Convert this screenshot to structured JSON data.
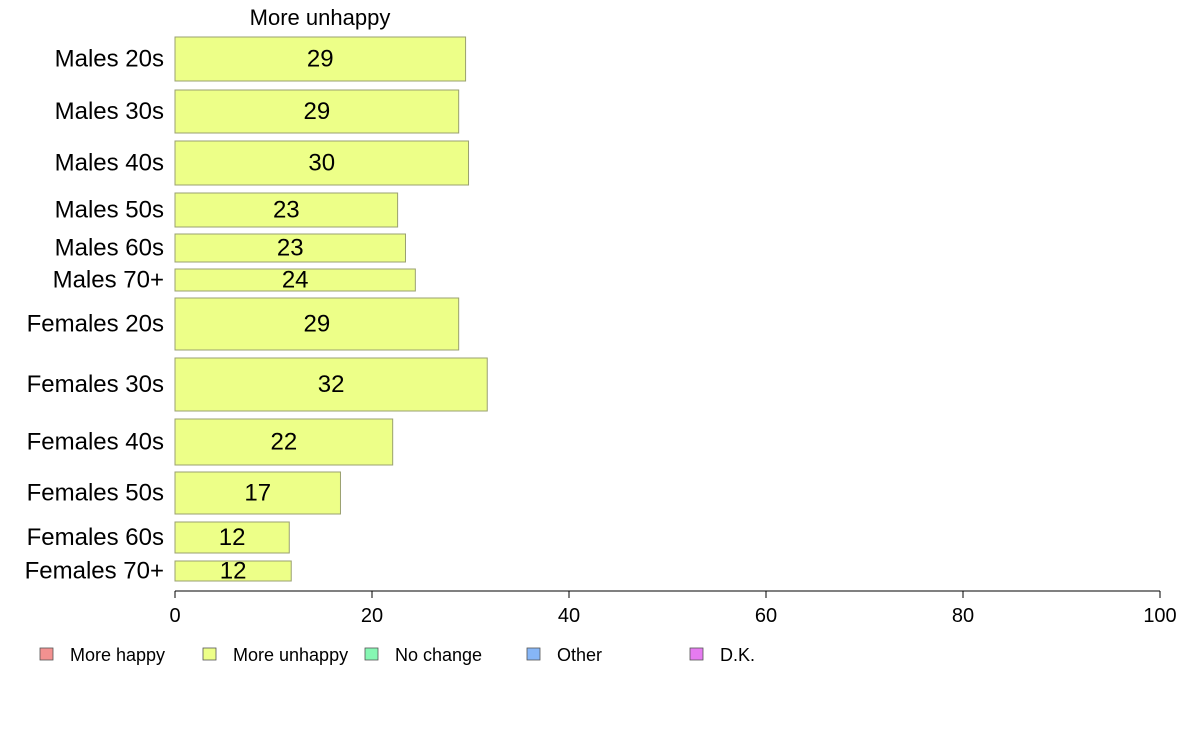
{
  "chart_data": {
    "type": "bar",
    "orientation": "horizontal",
    "title": "More unhappy",
    "xlabel": "",
    "ylabel": "",
    "xlim": [
      0,
      100
    ],
    "xticks": [
      0,
      20,
      40,
      60,
      80,
      100
    ],
    "grid": false,
    "legend_position": "bottom",
    "categories": [
      "Males 20s",
      "Males 30s",
      "Males 40s",
      "Males 50s",
      "Males 60s",
      "Males 70+",
      "Females 20s",
      "Females 30s",
      "Females 40s",
      "Females 50s",
      "Females 60s",
      "Females 70+"
    ],
    "values": [
      29.5,
      28.8,
      29.8,
      22.6,
      23.4,
      24.4,
      28.8,
      31.7,
      22.1,
      16.8,
      11.6,
      11.8
    ],
    "data_labels": [
      "29",
      "29",
      "30",
      "23",
      "23",
      "24",
      "29",
      "32",
      "22",
      "17",
      "12",
      "12"
    ],
    "series_color": "#EDFF88",
    "bar_border_color": "#9aa070",
    "legend": [
      {
        "label": "More happy",
        "color": "#F39190"
      },
      {
        "label": "More unhappy",
        "color": "#EDFF88"
      },
      {
        "label": "No change",
        "color": "#86F7B3"
      },
      {
        "label": "Other",
        "color": "#86B6F7"
      },
      {
        "label": "D.K.",
        "color": "#E57BF0"
      }
    ]
  }
}
